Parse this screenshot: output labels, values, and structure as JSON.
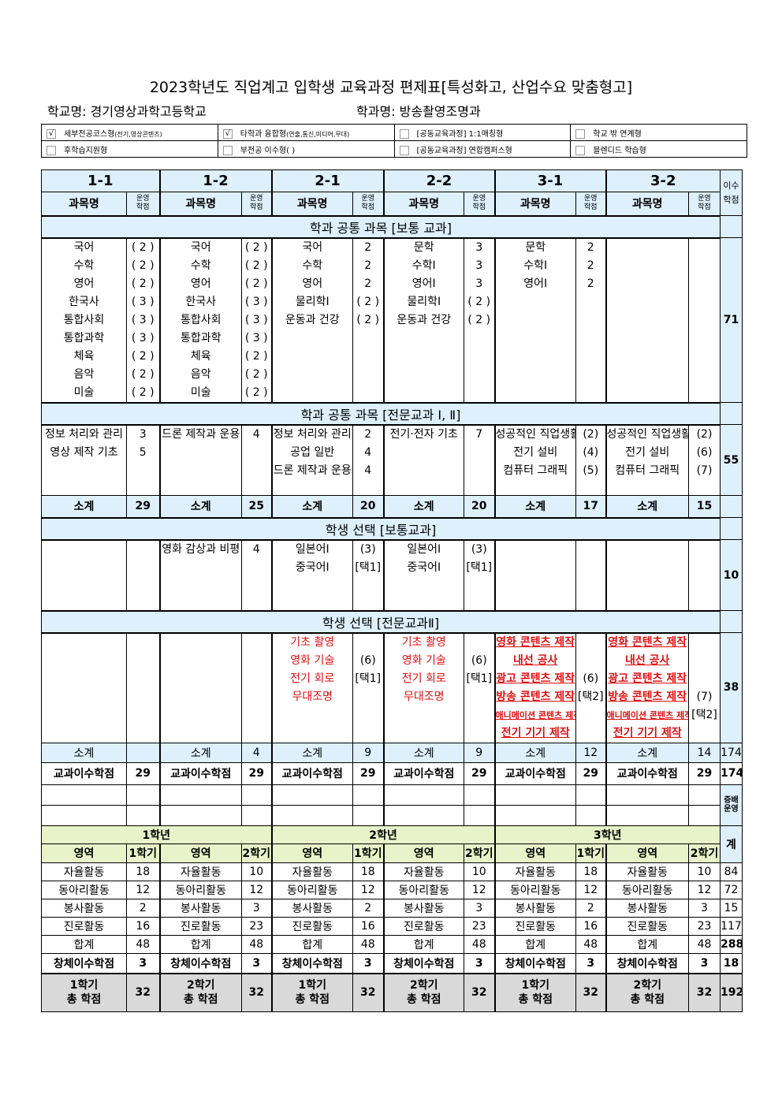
{
  "title": "2023학년도 직업계고 입학생 교육과정 편제표[특성화고, 산업수요 맞춤형고]",
  "school": "학교명: 경기영상과학고등학교",
  "dept": "학과명: 방송촬영조명과",
  "options": [
    {
      "label": "세부전공코스형",
      "sub": "(전기,영상콘텐츠)",
      "checked": true
    },
    {
      "label": "타학과 융합형",
      "sub": "(연출,통신,미디어,무대)",
      "checked": true
    },
    {
      "label": "[공동교육과정] 1:1매칭형",
      "sub": "",
      "checked": false
    },
    {
      "label": "학교 밖 연계형",
      "sub": "",
      "checked": false
    },
    {
      "label": "후학습지원형",
      "sub": "",
      "checked": false
    },
    {
      "label": "부전공 이수형(            )",
      "sub": "",
      "checked": false
    },
    {
      "label": "[공동교육과정] 연합캠퍼스형",
      "sub": "",
      "checked": false
    },
    {
      "label": "블렌디드 학습형",
      "sub": "",
      "checked": false
    }
  ],
  "semesters": [
    "1-1",
    "1-2",
    "2-1",
    "2-2",
    "3-1",
    "3-2"
  ],
  "col_subject": "과목명",
  "col_credit_1": "운영",
  "col_credit_2": "학점",
  "col_total": "이수 학점",
  "sections": [
    {
      "banner": "학과 공통 과목 [보통 교과]",
      "total": "71",
      "cols": [
        {
          "subjects": [
            "국어",
            "수학",
            "영어",
            "한국사",
            "통합사회",
            "통합과학",
            "체육",
            "음악",
            "미술"
          ],
          "credits": [
            "( 2 )",
            "( 2 )",
            "( 2 )",
            "( 3 )",
            "( 3 )",
            "( 3 )",
            "( 2 )",
            "( 2 )",
            "( 2 )"
          ]
        },
        {
          "subjects": [
            "국어",
            "수학",
            "영어",
            "한국사",
            "통합사회",
            "통합과학",
            "체육",
            "음악",
            "미술"
          ],
          "credits": [
            "( 2 )",
            "( 2 )",
            "( 2 )",
            "( 3 )",
            "( 3 )",
            "( 3 )",
            "( 2 )",
            "( 2 )",
            "( 2 )"
          ]
        },
        {
          "subjects": [
            "국어",
            "수학",
            "영어",
            "물리학Ⅰ",
            "운동과 건강"
          ],
          "credits": [
            "2",
            "2",
            "2",
            "( 2 )",
            "( 2 )"
          ]
        },
        {
          "subjects": [
            "문학",
            "수학Ⅰ",
            "영어Ⅰ",
            "물리학Ⅰ",
            "운동과 건강"
          ],
          "credits": [
            "3",
            "3",
            "3",
            "( 2 )",
            "( 2 )"
          ]
        },
        {
          "subjects": [
            "문학",
            "수학Ⅰ",
            "영어Ⅰ"
          ],
          "credits": [
            "2",
            "2",
            "2"
          ]
        },
        {
          "subjects": [],
          "credits": []
        }
      ]
    },
    {
      "banner": "학과 공통 과목 [전문교과 Ⅰ, Ⅱ]",
      "total": "55",
      "cols": [
        {
          "subjects": [
            "정보 처리와 관리",
            "영상 제작 기초"
          ],
          "credits": [
            "3",
            "5"
          ]
        },
        {
          "subjects": [
            "드론 제작과 운용"
          ],
          "credits": [
            "4"
          ]
        },
        {
          "subjects": [
            "정보 처리와 관리",
            "공업 일반",
            "드론 제작과 운용"
          ],
          "credits": [
            "2",
            "4",
            "4"
          ]
        },
        {
          "subjects": [
            "전기·전자 기초"
          ],
          "credits": [
            "7"
          ]
        },
        {
          "subjects": [
            "성공적인 직업생활",
            "전기 설비",
            "컴퓨터 그래픽"
          ],
          "credits": [
            "(2)",
            "(4)",
            "(5)"
          ]
        },
        {
          "subjects": [
            "성공적인 직업생활",
            "전기 설비",
            "컴퓨터 그래픽"
          ],
          "credits": [
            "(2)",
            "(6)",
            "(7)"
          ]
        }
      ]
    },
    {
      "subtotal_label": "소계",
      "subtotals": [
        "29",
        "25",
        "20",
        "20",
        "17",
        "15"
      ]
    },
    {
      "banner": "학생 선택 [보통교과]",
      "total": "10",
      "cols": [
        {
          "subjects": [],
          "credits": []
        },
        {
          "subjects": [
            "영화 감상과 비평"
          ],
          "credits": [
            "4"
          ]
        },
        {
          "subjects": [
            "일본어Ⅰ",
            "중국어Ⅰ"
          ],
          "credits": [
            "(3)",
            "[택1]"
          ]
        },
        {
          "subjects": [
            "일본어Ⅰ",
            "중국어Ⅰ"
          ],
          "credits": [
            "(3)",
            "[택1]"
          ]
        },
        {
          "subjects": [],
          "credits": []
        },
        {
          "subjects": [],
          "credits": []
        }
      ]
    },
    {
      "banner": "학생 선택 [전문교과Ⅱ]",
      "total": "38",
      "cols": [
        {
          "subjects": [],
          "credits": []
        },
        {
          "subjects": [],
          "credits": []
        },
        {
          "subjects": [
            "기초 촬영",
            "영화 기술",
            "전기 회로",
            "무대조명"
          ],
          "credits": [
            "",
            "(6)",
            "[택1]"
          ],
          "style": "red"
        },
        {
          "subjects": [
            "기초 촬영",
            "영화 기술",
            "전기 회로",
            "무대조명"
          ],
          "credits": [
            "",
            "(6)",
            "[택1]"
          ],
          "style": "red"
        },
        {
          "subjects": [
            "영화 콘텐츠 제작",
            "내선 공사",
            "광고 콘텐츠 제작",
            "방송 콘텐츠 제작",
            "애니메이션 콘텐츠 제작",
            "전기 기기 제작"
          ],
          "credits": [
            "",
            "",
            "(6)",
            "[택2]"
          ],
          "style": "redu"
        },
        {
          "subjects": [
            "영화 콘텐츠 제작",
            "내선 공사",
            "광고 콘텐츠 제작",
            "방송 콘텐츠 제작",
            "애니메이션 콘텐츠 제작",
            "전기 기기 제작"
          ],
          "credits": [
            "",
            "",
            "",
            "(7)",
            "[택2]"
          ],
          "style": "redu"
        }
      ]
    }
  ],
  "subtotal2": {
    "label": "소계",
    "values": [
      "",
      "4",
      "9",
      "9",
      "12",
      "14"
    ],
    "total": "174"
  },
  "credit_total": {
    "label": "교과이수학점",
    "values": [
      "29",
      "29",
      "29",
      "29",
      "29",
      "29"
    ],
    "total": "174"
  },
  "extra_label": "증배운영",
  "activities": {
    "grades": [
      "1학년",
      "2학년",
      "3학년"
    ],
    "sum_label": "계",
    "col_area": "영역",
    "col_sem1": "1학기",
    "col_sem2": "2학기",
    "rows": [
      {
        "name": "자율활동",
        "values": [
          "18",
          "10",
          "18",
          "10",
          "18",
          "10"
        ],
        "total": "84"
      },
      {
        "name": "동아리활동",
        "values": [
          "12",
          "12",
          "12",
          "12",
          "12",
          "12"
        ],
        "total": "72"
      },
      {
        "name": "봉사활동",
        "values": [
          "2",
          "3",
          "2",
          "3",
          "2",
          "3"
        ],
        "total": "15"
      },
      {
        "name": "진로활동",
        "values": [
          "16",
          "23",
          "16",
          "23",
          "16",
          "23"
        ],
        "total": "117"
      },
      {
        "name": "합계",
        "values": [
          "48",
          "48",
          "48",
          "48",
          "48",
          "48"
        ],
        "total": "288"
      }
    ],
    "creative": {
      "name": "창체이수학점",
      "values": [
        "3",
        "3",
        "3",
        "3",
        "3",
        "3"
      ],
      "total": "18"
    },
    "final": {
      "labels": [
        "1학기",
        "2학기",
        "1학기",
        "2학기",
        "1학기",
        "2학기"
      ],
      "sub": "총 학점",
      "values": [
        "32",
        "32",
        "32",
        "32",
        "32",
        "32"
      ],
      "total": "192"
    }
  },
  "colors": {
    "header_blue": "#ddf0fb",
    "activity_green": "#e8f3c9",
    "total_grey": "#d9d9d9",
    "elective_red": "#e01010"
  }
}
